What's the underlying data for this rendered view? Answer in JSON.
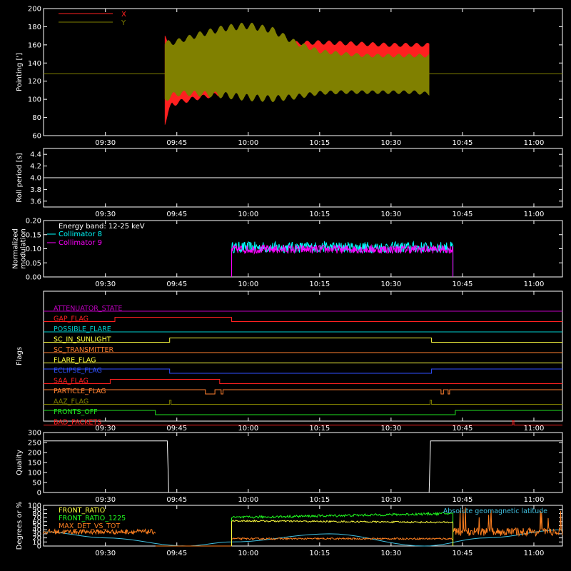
{
  "time_ticks": [
    "09:30",
    "09:45",
    "10:00",
    "10:15",
    "10:30",
    "10:45",
    "11:00"
  ],
  "time_tick_minutes": [
    570,
    585,
    600,
    615,
    630,
    645,
    660
  ],
  "time_range": [
    557,
    666
  ],
  "chart_data": [
    {
      "type": "area",
      "ylabel": "Pointing [']",
      "ylim": [
        60,
        200
      ],
      "yticks": [
        60,
        80,
        100,
        120,
        140,
        160,
        180,
        200
      ],
      "legend": [
        {
          "name": "X",
          "color": "#ff2020"
        },
        {
          "name": "Y",
          "color": "#808000"
        }
      ],
      "baseline": 128,
      "data_start": 582.5,
      "data_end": 638.0,
      "series": [
        {
          "name": "X",
          "color": "#ff2020",
          "x": [
            582.5,
            584,
            586,
            590,
            595,
            600,
            605,
            610,
            615,
            620,
            625,
            630,
            635,
            638
          ],
          "upper": [
            170,
            160,
            156,
            154,
            156,
            160,
            163,
            164,
            165,
            164,
            163,
            162,
            162,
            162
          ],
          "lower": [
            72,
            92,
            95,
            100,
            104,
            108,
            110,
            112,
            112,
            113,
            113,
            113,
            114,
            115
          ]
        },
        {
          "name": "Y",
          "color": "#808000",
          "x": [
            582.5,
            584,
            586,
            590,
            595,
            600,
            605,
            610,
            615,
            620,
            625,
            630,
            635,
            638
          ],
          "upper": [
            165,
            165,
            168,
            175,
            182,
            185,
            180,
            165,
            155,
            152,
            150,
            150,
            150,
            150
          ],
          "lower": [
            96,
            102,
            104,
            103,
            101,
            98,
            97,
            100,
            105,
            106,
            106,
            106,
            106,
            104
          ]
        }
      ]
    },
    {
      "type": "line",
      "ylabel": "Roll period [s]",
      "ylim": [
        3.5,
        4.5
      ],
      "yticks": [
        "3.6",
        "3.8",
        "4.0",
        "4.2",
        "4.4"
      ],
      "ytick_values": [
        3.6,
        3.8,
        4.0,
        4.2,
        4.4
      ],
      "series": [
        {
          "name": "Roll period",
          "color": "#ffffff",
          "x": [
            557,
            666
          ],
          "y": [
            4.0,
            4.0
          ]
        }
      ]
    },
    {
      "type": "line",
      "ylabel": "Normalized modulation",
      "ylim": [
        0.0,
        0.2
      ],
      "yticks": [
        "0.00",
        "0.05",
        "0.10",
        "0.15",
        "0.20"
      ],
      "ytick_values": [
        0.0,
        0.05,
        0.1,
        0.15,
        0.2
      ],
      "energy_band": "Energy band: 12-25 keV",
      "active_range": [
        596.5,
        643.0
      ],
      "series": [
        {
          "name": "Collimator 8",
          "color": "#00ffff",
          "level": 0.105,
          "noise": 0.02
        },
        {
          "name": "Collimator 9",
          "color": "#ff00ff",
          "level": 0.098,
          "noise": 0.015
        }
      ]
    },
    {
      "type": "line",
      "ylabel": "Flags",
      "flags": [
        {
          "name": "ATTENUATOR_STATE",
          "color": "#c000c0",
          "segments": [
            [
              557,
              666,
              0
            ]
          ]
        },
        {
          "name": "GAP_FLAG",
          "color": "#ff2020",
          "segments": [
            [
              557,
              572,
              0
            ],
            [
              572,
              596.5,
              1
            ],
            [
              596.5,
              666,
              0
            ]
          ]
        },
        {
          "name": "POSSIBLE_FLARE",
          "color": "#00d0d0",
          "segments": [
            [
              557,
              666,
              0
            ]
          ]
        },
        {
          "name": "SC_IN_SUNLIGHT",
          "color": "#ffff40",
          "segments": [
            [
              557,
              583.5,
              0
            ],
            [
              583.5,
              638.5,
              1
            ],
            [
              638.5,
              666,
              0
            ]
          ]
        },
        {
          "name": "SC_TRANSMITTER",
          "color": "#ff8030",
          "segments": [
            [
              557,
              666,
              0
            ]
          ]
        },
        {
          "name": "FLARE_FLAG",
          "color": "#ffff40",
          "segments": [
            [
              557,
              666,
              0
            ]
          ]
        },
        {
          "name": "ECLIPSE_FLAG",
          "color": "#3050ff",
          "segments": [
            [
              557,
              583.5,
              1
            ],
            [
              583.5,
              638.5,
              0
            ],
            [
              638.5,
              666,
              1
            ]
          ]
        },
        {
          "name": "SAA_FLAG",
          "color": "#ff2020",
          "segments": [
            [
              557,
              571,
              0
            ],
            [
              571,
              594,
              1
            ],
            [
              594,
              666,
              0
            ]
          ]
        },
        {
          "name": "PARTICLE_FLAG",
          "color": "#ff8030",
          "segments": [
            [
              557,
              591,
              1
            ],
            [
              591,
              593,
              0
            ],
            [
              593,
              594.3,
              1
            ],
            [
              594.3,
              594.7,
              0
            ],
            [
              594.7,
              640.5,
              1
            ],
            [
              640.5,
              641,
              0
            ],
            [
              641,
              642,
              1
            ],
            [
              642,
              642.3,
              0
            ],
            [
              642.3,
              666,
              1
            ]
          ]
        },
        {
          "name": "AAZ_FLAG",
          "color": "#808000",
          "segments": [
            [
              557,
              583.5,
              0
            ],
            [
              583.5,
              583.8,
              1
            ],
            [
              583.8,
              638.2,
              0
            ],
            [
              638.2,
              638.5,
              1
            ],
            [
              638.5,
              666,
              0
            ]
          ]
        },
        {
          "name": "FRONTS_OFF",
          "color": "#20e020",
          "segments": [
            [
              557,
              580.5,
              1
            ],
            [
              580.5,
              643.5,
              0
            ],
            [
              643.5,
              666,
              1
            ]
          ]
        },
        {
          "name": "BAD_PACKETS",
          "color": "#ff2020",
          "segments": [
            [
              557,
              655.5,
              0
            ],
            [
              655.5,
              655.8,
              1
            ],
            [
              655.8,
              666,
              0
            ]
          ]
        }
      ]
    },
    {
      "type": "line",
      "ylabel": "Quality",
      "ylim": [
        0,
        300
      ],
      "yticks": [
        "0",
        "50",
        "100",
        "150",
        "200",
        "250",
        "300"
      ],
      "ytick_values": [
        0,
        50,
        100,
        150,
        200,
        250,
        300
      ],
      "series": [
        {
          "name": "Quality",
          "color": "#ffffff",
          "x": [
            557,
            583.0,
            583.3,
            638.0,
            638.3,
            666
          ],
          "y": [
            258,
            258,
            0,
            0,
            258,
            258
          ]
        }
      ]
    },
    {
      "type": "line",
      "ylabel": "Degrees or %",
      "ylim": [
        0,
        100
      ],
      "yticks": [
        "0",
        "10",
        "20",
        "30",
        "40",
        "50",
        "60",
        "70",
        "80",
        "90",
        "100"
      ],
      "ytick_values": [
        0,
        10,
        20,
        30,
        40,
        50,
        60,
        70,
        80,
        90,
        100
      ],
      "right_label": "Absolute geomagnetic latitude",
      "series": [
        {
          "name": "FRONT_RATIO",
          "color": "#ffff40",
          "range": [
            596.5,
            643.0
          ],
          "start": 62,
          "end": 58,
          "noise": 2
        },
        {
          "name": "FRONT_RATIO_1225",
          "color": "#20ff20",
          "range": [
            596.5,
            643.0
          ],
          "start": 70,
          "end": 80,
          "noise": 3
        },
        {
          "name": "MAX_DET_VS_TOT",
          "color": "#ff8020",
          "segments": [
            [
              557,
              580.5,
              35,
              6
            ],
            [
              596.5,
              643.0,
              18,
              2
            ],
            [
              643.0,
              666,
              35,
              10
            ]
          ]
        },
        {
          "name": "Absolute geomagnetic latitude",
          "color": "#40c0e0",
          "x": [
            557,
            570,
            587,
            596.5,
            617,
            637,
            650,
            666
          ],
          "y": [
            35,
            20,
            0,
            10,
            30,
            0,
            20,
            40
          ]
        }
      ]
    }
  ]
}
